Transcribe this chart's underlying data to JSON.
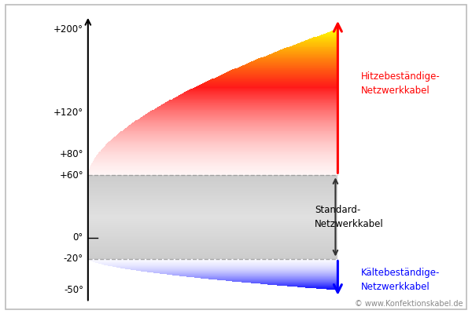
{
  "yticks": [
    "-50°",
    "-20°",
    "0°",
    "+60°",
    "+80°",
    "+120°",
    "+200°"
  ],
  "ytick_vals": [
    -50,
    -20,
    0,
    60,
    80,
    120,
    200
  ],
  "ymin": -70,
  "ymax": 225,
  "label_heat_line1": "Hitzebeständige-",
  "label_heat_line2": "Netzwerkkabel",
  "label_cold_line1": "Kältebeständige-",
  "label_cold_line2": "Netzwerkkabel",
  "label_standard_line1": "Standard-",
  "label_standard_line2": "Netzwerkkabel",
  "copyright": "© www.Konfektionskabel.de",
  "bg_color": "#ffffff",
  "border_color": "#aaaaaa"
}
